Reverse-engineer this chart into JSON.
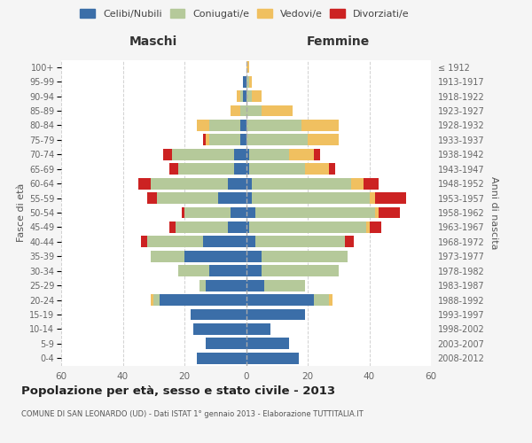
{
  "age_groups": [
    "0-4",
    "5-9",
    "10-14",
    "15-19",
    "20-24",
    "25-29",
    "30-34",
    "35-39",
    "40-44",
    "45-49",
    "50-54",
    "55-59",
    "60-64",
    "65-69",
    "70-74",
    "75-79",
    "80-84",
    "85-89",
    "90-94",
    "95-99",
    "100+"
  ],
  "birth_years": [
    "2008-2012",
    "2003-2007",
    "1998-2002",
    "1993-1997",
    "1988-1992",
    "1983-1987",
    "1978-1982",
    "1973-1977",
    "1968-1972",
    "1963-1967",
    "1958-1962",
    "1953-1957",
    "1948-1952",
    "1943-1947",
    "1938-1942",
    "1933-1937",
    "1928-1932",
    "1923-1927",
    "1918-1922",
    "1913-1917",
    "≤ 1912"
  ],
  "colors": {
    "celibe": "#3B6EA8",
    "coniugato": "#B5C99A",
    "vedovo": "#F0C060",
    "divorziato": "#CC2222"
  },
  "maschi": {
    "celibe": [
      16,
      13,
      17,
      18,
      28,
      13,
      12,
      20,
      14,
      6,
      5,
      9,
      6,
      4,
      4,
      2,
      2,
      0,
      1,
      1,
      0
    ],
    "coniugato": [
      0,
      0,
      0,
      0,
      2,
      2,
      10,
      11,
      18,
      17,
      15,
      20,
      25,
      18,
      20,
      10,
      10,
      2,
      1,
      0,
      0
    ],
    "vedovo": [
      0,
      0,
      0,
      0,
      1,
      0,
      0,
      0,
      0,
      0,
      0,
      0,
      0,
      0,
      0,
      1,
      4,
      3,
      1,
      0,
      0
    ],
    "divorziato": [
      0,
      0,
      0,
      0,
      0,
      0,
      0,
      0,
      2,
      2,
      1,
      3,
      4,
      3,
      3,
      1,
      0,
      0,
      0,
      0,
      0
    ]
  },
  "femmine": {
    "nubile": [
      17,
      14,
      8,
      19,
      22,
      6,
      5,
      5,
      3,
      1,
      3,
      2,
      2,
      1,
      1,
      0,
      0,
      0,
      0,
      0,
      0
    ],
    "coniugata": [
      0,
      0,
      0,
      0,
      5,
      13,
      25,
      28,
      29,
      38,
      39,
      38,
      32,
      18,
      13,
      20,
      18,
      5,
      2,
      1,
      0
    ],
    "vedova": [
      0,
      0,
      0,
      0,
      1,
      0,
      0,
      0,
      0,
      1,
      1,
      2,
      4,
      8,
      8,
      10,
      12,
      10,
      3,
      1,
      1
    ],
    "divorziata": [
      0,
      0,
      0,
      0,
      0,
      0,
      0,
      0,
      3,
      4,
      7,
      10,
      5,
      2,
      2,
      0,
      0,
      0,
      0,
      0,
      0
    ]
  },
  "title": "Popolazione per età, sesso e stato civile - 2013",
  "subtitle": "COMUNE DI SAN LEONARDO (UD) - Dati ISTAT 1° gennaio 2013 - Elaborazione TUTTITALIA.IT",
  "xlabel_left": "Maschi",
  "xlabel_right": "Femmine",
  "ylabel_left": "Fasce di età",
  "ylabel_right": "Anni di nascita",
  "xlim": 60,
  "bg_color": "#f5f5f5",
  "plot_bg": "#ffffff",
  "grid_color": "#cccccc"
}
